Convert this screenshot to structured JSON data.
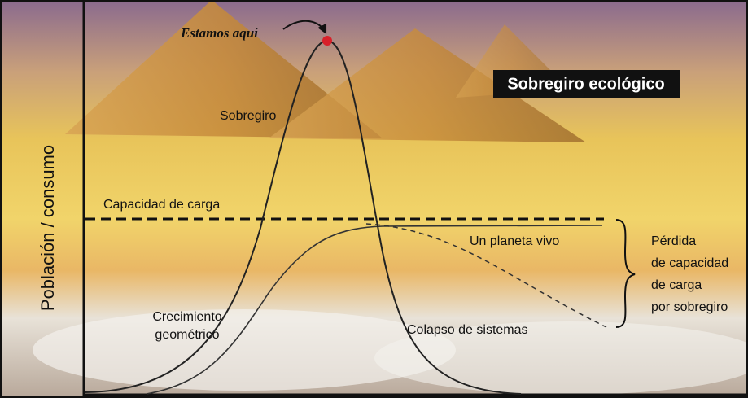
{
  "title": "Sobregiro ecológico",
  "y_axis_label": "Población / consumo",
  "pointer_label": "Estamos aquí",
  "labels": {
    "overshoot": "Sobregiro",
    "carrying_capacity": "Capacidad de carga",
    "living_planet": "Un planeta vivo",
    "growth": [
      "Crecimiento",
      "geométrico"
    ],
    "collapse": "Colapso de sistemas",
    "loss": [
      "Pérdida",
      "de capacidad",
      "de carga",
      "por sobregiro"
    ]
  }
}
